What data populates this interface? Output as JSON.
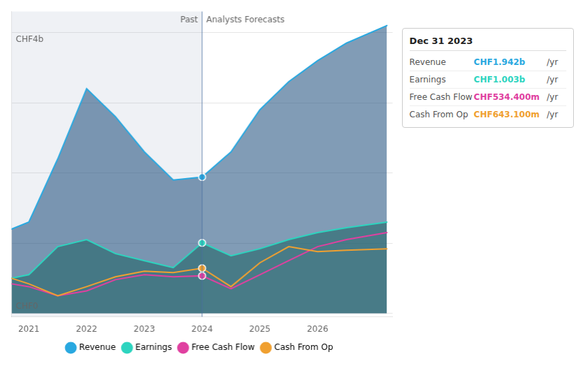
{
  "chart_data": {
    "type": "line",
    "x": [
      2020.7,
      2021.0,
      2021.5,
      2022.0,
      2022.5,
      2023.0,
      2023.5,
      2024.0,
      2024.5,
      2025.0,
      2025.5,
      2026.0,
      2026.5,
      2027.2
    ],
    "xlim": [
      2020.7,
      2027.3
    ],
    "xticks": [
      2021,
      2022,
      2023,
      2024,
      2025,
      2026
    ],
    "ylim": [
      -0.05,
      4.3
    ],
    "yticks": [
      0,
      1,
      2,
      3,
      4
    ],
    "grid": true,
    "tick_labels": "x",
    "legend": "bottom",
    "divider": 2024.0,
    "annotations": {
      "past": "Past",
      "forecast": "Analysts Forecasts",
      "y_top": "CHF4b",
      "y_bottom": "CHF0"
    },
    "series": [
      {
        "name": "Revenue",
        "type": "area",
        "color": "#29a8e0",
        "fill_color": "#1a4a7a",
        "values": [
          1.2,
          1.3,
          2.2,
          3.2,
          2.8,
          2.3,
          1.9,
          1.942,
          2.3,
          2.9,
          3.3,
          3.6,
          3.85,
          4.1
        ],
        "dot": {
          "x": 2024.0,
          "y": 1.942
        }
      },
      {
        "name": "Earnings",
        "type": "area",
        "color": "#2dd4bf",
        "fill_color": "#1a6060",
        "values": [
          0.5,
          0.55,
          0.95,
          1.05,
          0.85,
          0.75,
          0.65,
          1.003,
          0.82,
          0.92,
          1.05,
          1.15,
          1.22,
          1.3
        ],
        "dot": {
          "x": 2024.0,
          "y": 1.003
        }
      },
      {
        "name": "Free Cash Flow",
        "type": "line",
        "color": "#e040a0",
        "values": [
          0.42,
          0.38,
          0.25,
          0.32,
          0.48,
          0.55,
          0.52,
          0.5344,
          0.35,
          0.55,
          0.75,
          0.95,
          1.05,
          1.15
        ],
        "dot": {
          "x": 2024.0,
          "y": 0.5344
        }
      },
      {
        "name": "Cash From Op",
        "type": "line",
        "color": "#f0a030",
        "values": [
          0.5,
          0.42,
          0.25,
          0.38,
          0.52,
          0.6,
          0.58,
          0.6431,
          0.38,
          0.72,
          0.95,
          0.88,
          0.9,
          0.92
        ],
        "dot": {
          "x": 2024.0,
          "y": 0.6431
        }
      }
    ],
    "tooltip": {
      "title": "Dec 31 2023",
      "rows": [
        {
          "label": "Revenue",
          "value": "CHF1.942b",
          "unit": "/yr",
          "color": "#29a8e0"
        },
        {
          "label": "Earnings",
          "value": "CHF1.003b",
          "unit": "/yr",
          "color": "#2dd4bf"
        },
        {
          "label": "Free Cash Flow",
          "value": "CHF534.400m",
          "unit": "/yr",
          "color": "#e040a0"
        },
        {
          "label": "Cash From Op",
          "value": "CHF643.100m",
          "unit": "/yr",
          "color": "#f0a030"
        }
      ]
    }
  }
}
